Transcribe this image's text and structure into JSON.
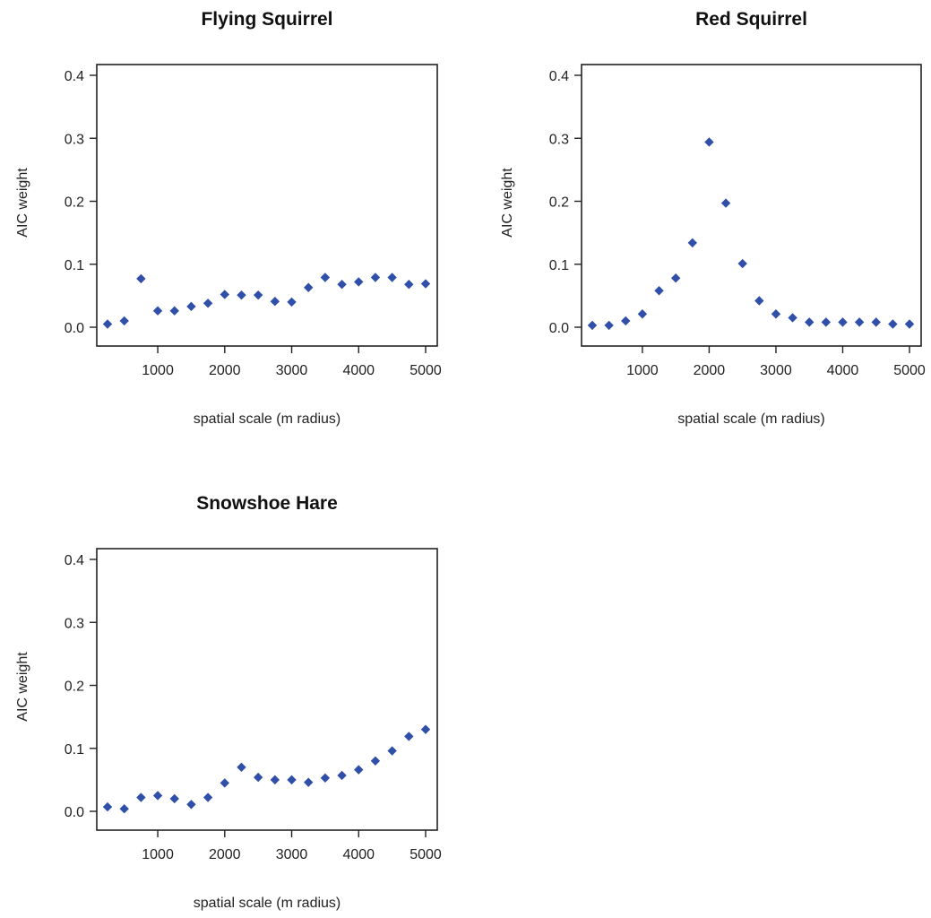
{
  "marker_color": "#2f4fa8",
  "chart_data": [
    {
      "type": "scatter",
      "title": "Flying Squirrel",
      "xlabel": "spatial scale (m radius)",
      "ylabel": "AIC weight",
      "xlim": [
        250,
        5000
      ],
      "ylim": [
        0,
        0.4
      ],
      "xticks": [
        1000,
        2000,
        3000,
        4000,
        5000
      ],
      "yticks": [
        0.0,
        0.1,
        0.2,
        0.3,
        0.4
      ],
      "xtick_labels": [
        "1000",
        "2000",
        "3000",
        "4000",
        "5000"
      ],
      "ytick_labels": [
        "0.0",
        "0.1",
        "0.2",
        "0.3",
        "0.4"
      ],
      "grid": false,
      "x": [
        250,
        500,
        750,
        1000,
        1250,
        1500,
        1750,
        2000,
        2250,
        2500,
        2750,
        3000,
        3250,
        3500,
        3750,
        4000,
        4250,
        4500,
        4750,
        5000
      ],
      "y": [
        0.005,
        0.01,
        0.077,
        0.026,
        0.026,
        0.033,
        0.038,
        0.052,
        0.051,
        0.051,
        0.041,
        0.04,
        0.063,
        0.079,
        0.068,
        0.072,
        0.079,
        0.079,
        0.068,
        0.069
      ]
    },
    {
      "type": "scatter",
      "title": "Red Squirrel",
      "xlabel": "spatial scale (m radius)",
      "ylabel": "AIC weight",
      "xlim": [
        250,
        5000
      ],
      "ylim": [
        0,
        0.4
      ],
      "xticks": [
        1000,
        2000,
        3000,
        4000,
        5000
      ],
      "yticks": [
        0.0,
        0.1,
        0.2,
        0.3,
        0.4
      ],
      "xtick_labels": [
        "1000",
        "2000",
        "3000",
        "4000",
        "5000"
      ],
      "ytick_labels": [
        "0.0",
        "0.1",
        "0.2",
        "0.3",
        "0.4"
      ],
      "grid": false,
      "x": [
        250,
        500,
        750,
        1000,
        1250,
        1500,
        1750,
        2000,
        2250,
        2500,
        2750,
        3000,
        3250,
        3500,
        3750,
        4000,
        4250,
        4500,
        4750,
        5000
      ],
      "y": [
        0.003,
        0.003,
        0.01,
        0.021,
        0.058,
        0.078,
        0.134,
        0.294,
        0.197,
        0.101,
        0.042,
        0.021,
        0.015,
        0.008,
        0.008,
        0.008,
        0.008,
        0.008,
        0.005,
        0.005
      ]
    },
    {
      "type": "scatter",
      "title": "Snowshoe Hare",
      "xlabel": "spatial scale (m radius)",
      "ylabel": "AIC weight",
      "xlim": [
        250,
        5000
      ],
      "ylim": [
        0,
        0.4
      ],
      "xticks": [
        1000,
        2000,
        3000,
        4000,
        5000
      ],
      "yticks": [
        0.0,
        0.1,
        0.2,
        0.3,
        0.4
      ],
      "xtick_labels": [
        "1000",
        "2000",
        "3000",
        "4000",
        "5000"
      ],
      "ytick_labels": [
        "0.0",
        "0.1",
        "0.2",
        "0.3",
        "0.4"
      ],
      "grid": false,
      "x": [
        250,
        500,
        750,
        1000,
        1250,
        1500,
        1750,
        2000,
        2250,
        2500,
        2750,
        3000,
        3250,
        3500,
        3750,
        4000,
        4250,
        4500,
        4750,
        5000
      ],
      "y": [
        0.007,
        0.004,
        0.022,
        0.025,
        0.02,
        0.011,
        0.022,
        0.045,
        0.07,
        0.054,
        0.05,
        0.05,
        0.046,
        0.053,
        0.057,
        0.066,
        0.08,
        0.096,
        0.119,
        0.13
      ]
    }
  ]
}
